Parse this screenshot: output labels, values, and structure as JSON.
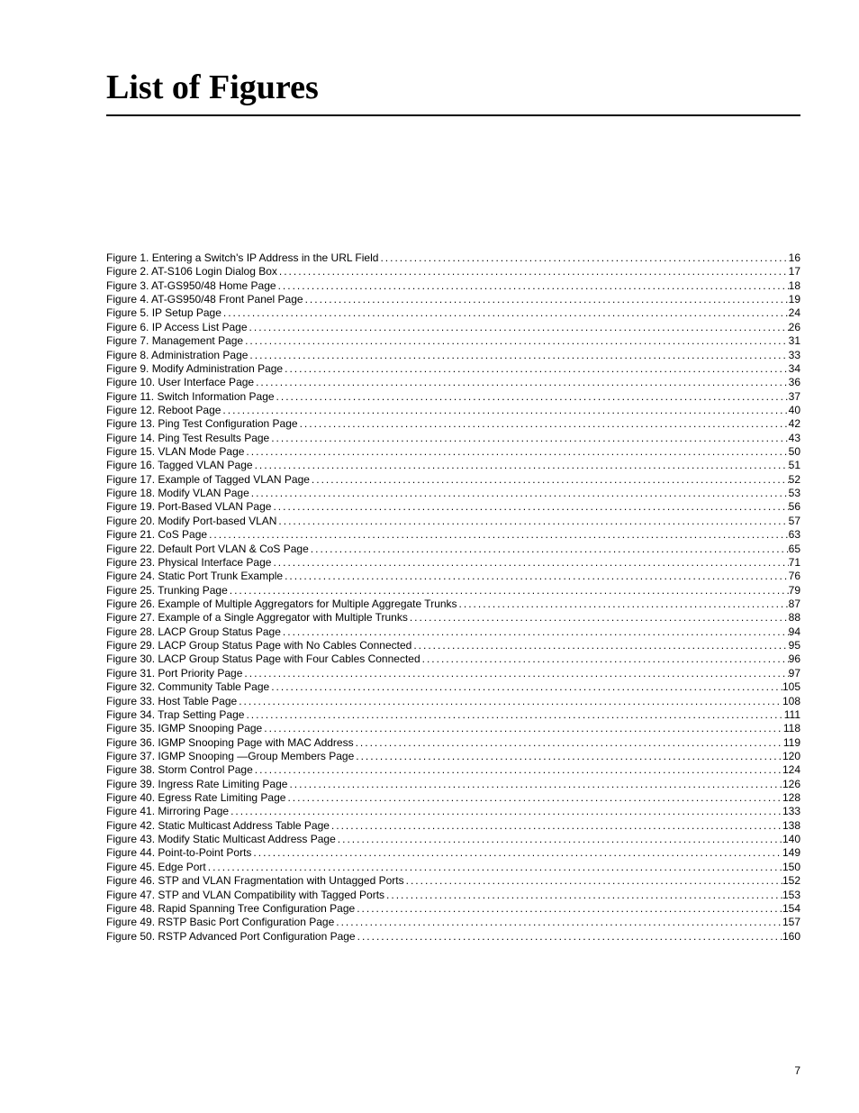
{
  "title": "List of Figures",
  "page_number": "7",
  "figures": [
    {
      "label": "Figure 1.  Entering a Switch's IP Address in the URL Field",
      "page": "16"
    },
    {
      "label": "Figure 2.  AT-S106 Login Dialog Box ",
      "page": "17"
    },
    {
      "label": "Figure 3.  AT-GS950/48 Home Page",
      "page": "18"
    },
    {
      "label": "Figure 4.  AT-GS950/48 Front Panel Page",
      "page": "19"
    },
    {
      "label": "Figure 5.  IP Setup Page ",
      "page": "24"
    },
    {
      "label": "Figure 6.  IP Access List Page ",
      "page": "26"
    },
    {
      "label": "Figure 7.  Management Page ",
      "page": "31"
    },
    {
      "label": "Figure 8.  Administration Page ",
      "page": "33"
    },
    {
      "label": "Figure 9.  Modify Administration Page",
      "page": "34"
    },
    {
      "label": "Figure 10.  User Interface Page ",
      "page": "36"
    },
    {
      "label": "Figure 11.  Switch Information Page",
      "page": "37"
    },
    {
      "label": "Figure 12.  Reboot Page ",
      "page": "40"
    },
    {
      "label": "Figure 13.  Ping Test Configuration Page",
      "page": "42"
    },
    {
      "label": "Figure 14.  Ping Test Results Page",
      "page": "43"
    },
    {
      "label": "Figure 15.  VLAN Mode Page",
      "page": "50"
    },
    {
      "label": "Figure 16.  Tagged VLAN Page ",
      "page": "51"
    },
    {
      "label": "Figure 17.  Example of Tagged VLAN Page",
      "page": "52"
    },
    {
      "label": "Figure 18.  Modify VLAN Page ",
      "page": "53"
    },
    {
      "label": "Figure 19.  Port-Based VLAN Page",
      "page": "56"
    },
    {
      "label": "Figure 20.  Modify Port-based VLAN ",
      "page": "57"
    },
    {
      "label": "Figure 21.  CoS Page ",
      "page": "63"
    },
    {
      "label": "Figure 22.  Default Port VLAN & CoS Page ",
      "page": "65"
    },
    {
      "label": "Figure 23.  Physical Interface Page",
      "page": "71"
    },
    {
      "label": "Figure 24.  Static Port Trunk Example",
      "page": "76"
    },
    {
      "label": "Figure 25.  Trunking Page ",
      "page": "79"
    },
    {
      "label": "Figure 26.  Example of Multiple Aggregators for Multiple Aggregate Trunks ",
      "page": "87"
    },
    {
      "label": "Figure 27.  Example of a Single Aggregator with Multiple Trunks ",
      "page": "88"
    },
    {
      "label": "Figure 28.  LACP Group Status Page ",
      "page": "94"
    },
    {
      "label": "Figure 29.  LACP Group Status Page with No Cables Connected ",
      "page": "95"
    },
    {
      "label": "Figure 30.  LACP Group Status Page with Four Cables Connected ",
      "page": "96"
    },
    {
      "label": "Figure 31.  Port Priority Page ",
      "page": "97"
    },
    {
      "label": "Figure 32.  Community Table Page ",
      "page": "105"
    },
    {
      "label": "Figure 33.  Host Table Page",
      "page": "108"
    },
    {
      "label": "Figure 34.  Trap Setting Page ",
      "page": "111"
    },
    {
      "label": "Figure 35.  IGMP Snooping Page",
      "page": "118"
    },
    {
      "label": "Figure 36.  IGMP Snooping Page with MAC Address ",
      "page": "119"
    },
    {
      "label": "Figure 37.  IGMP Snooping —Group Members Page ",
      "page": "120"
    },
    {
      "label": "Figure 38.  Storm Control Page",
      "page": "124"
    },
    {
      "label": "Figure 39.  Ingress Rate Limiting Page ",
      "page": "126"
    },
    {
      "label": "Figure 40.  Egress Rate Limiting Page",
      "page": "128"
    },
    {
      "label": "Figure 41.  Mirroring Page",
      "page": "133"
    },
    {
      "label": "Figure 42.  Static Multicast Address Table Page",
      "page": "138"
    },
    {
      "label": "Figure 43.  Modify Static Multicast Address Page ",
      "page": "140"
    },
    {
      "label": "Figure 44.  Point-to-Point Ports ",
      "page": "149"
    },
    {
      "label": "Figure 45.  Edge Port ",
      "page": "150"
    },
    {
      "label": "Figure 46.  STP and VLAN Fragmentation with Untagged Ports",
      "page": "152"
    },
    {
      "label": "Figure 47.  STP and VLAN Compatibility with Tagged Ports",
      "page": "153"
    },
    {
      "label": "Figure 48.  Rapid Spanning Tree Configuration Page",
      "page": "154"
    },
    {
      "label": "Figure 49.  RSTP Basic Port Configuration Page",
      "page": "157"
    },
    {
      "label": "Figure 50.  RSTP Advanced Port Configuration Page",
      "page": "160"
    }
  ]
}
